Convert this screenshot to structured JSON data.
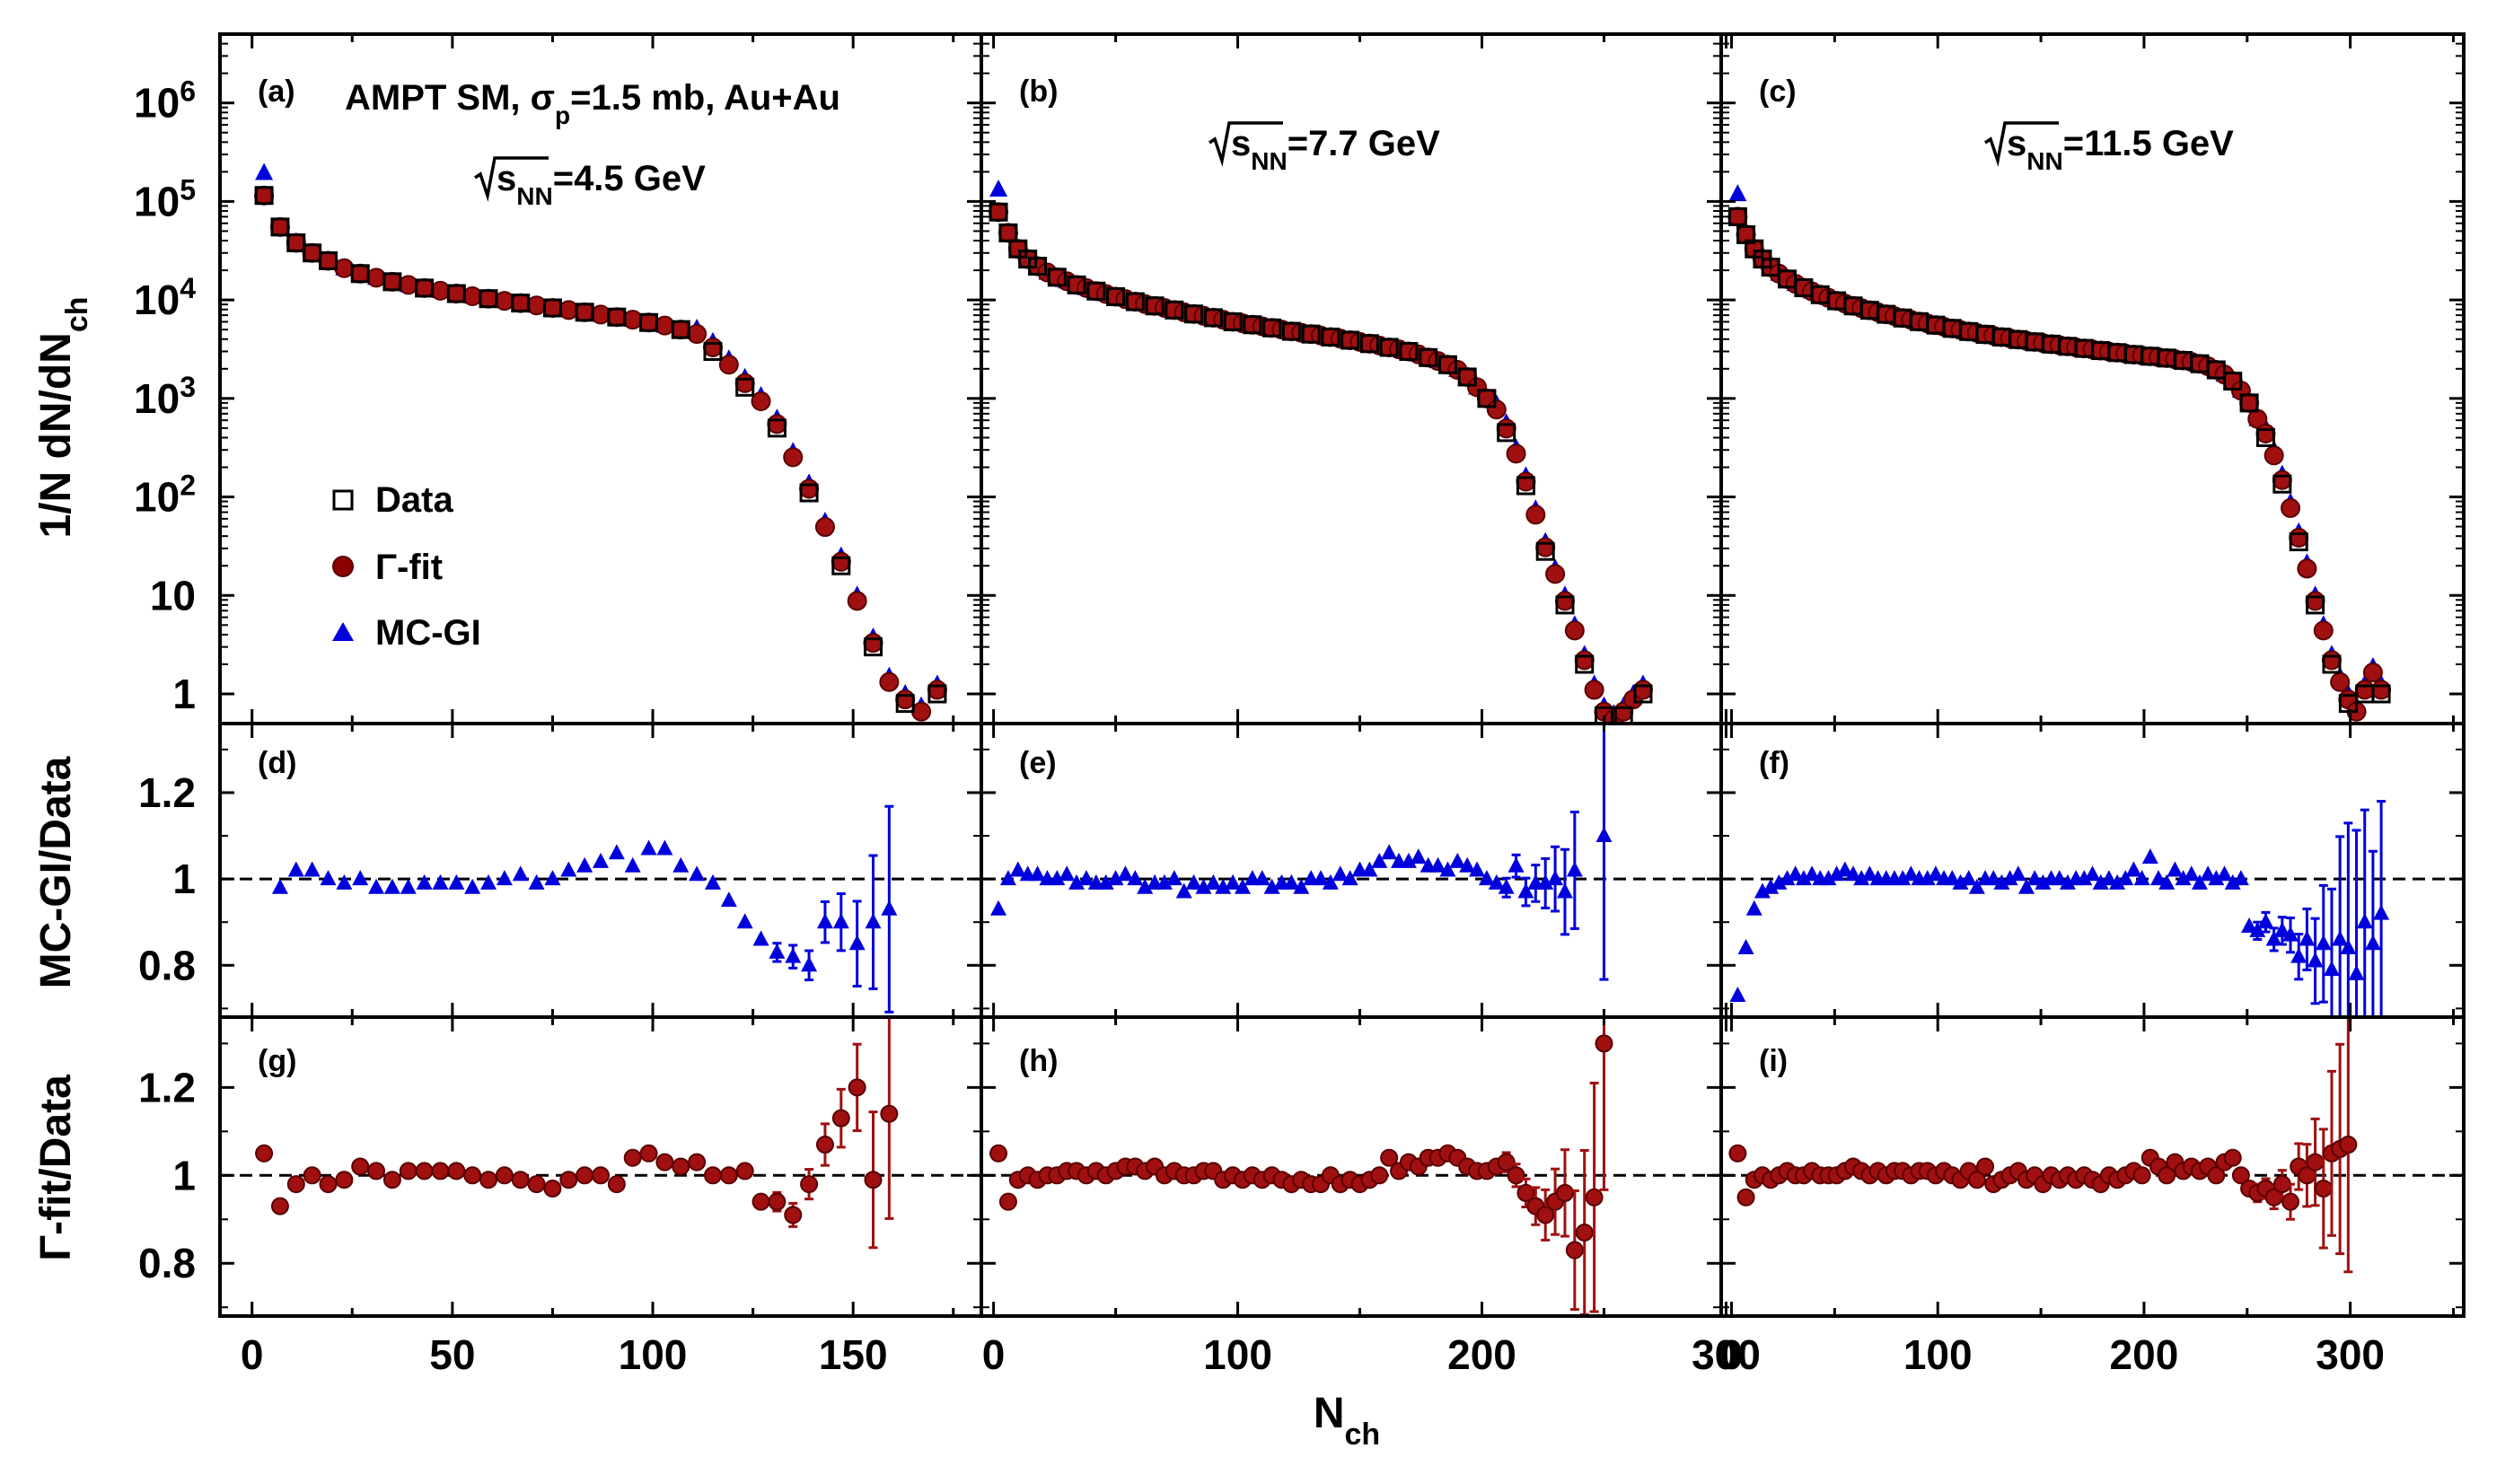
{
  "figure": {
    "header_text": "AMPT SM, σp=1.5 mb, Au+Au",
    "x_label": "Nch",
    "legend": {
      "data": "Data",
      "gamma": "Γ-fit",
      "mc": "MC-GI"
    },
    "colors": {
      "data": "#000000",
      "gamma": "#8b0000",
      "mc": "#0000dd"
    }
  },
  "chart_data": {
    "type": "scatter",
    "title": "AMPT SM, σp=1.5 mb, Au+Au",
    "xlabel": "Nch",
    "ylabels": [
      "1/N dN/dNch",
      "MC-GI/Data",
      "Γ-fit/Data"
    ],
    "yscale_top": "log",
    "ylim_top": [
      0.5,
      5000000
    ],
    "ylim_ratio": [
      0.68,
      1.36
    ],
    "yticks_top_labels": [
      "1",
      "10",
      "10²",
      "10³",
      "10⁴",
      "10⁵",
      "10⁶"
    ],
    "yticks_ratio": [
      "0.8",
      "1",
      "1.2"
    ],
    "columns": [
      {
        "energy_label": "√sNN=4.5 GeV",
        "panel_labels": [
          "(a)",
          "(d)",
          "(g)"
        ],
        "xlim": [
          -8,
          182
        ],
        "xticks": [
          0,
          50,
          100,
          150
        ],
        "xtick_labels": [
          "0",
          "50",
          "100",
          "150"
        ],
        "knee_n": 110,
        "plateau_at_knee": 5000,
        "fall_scale": 9.5,
        "data_x": [
          3,
          7,
          11,
          15,
          19,
          23,
          27,
          31,
          35,
          39,
          43,
          47,
          51,
          55,
          59,
          63,
          67,
          71,
          75,
          79,
          83,
          87,
          91,
          95,
          99,
          103,
          107,
          111,
          115,
          119,
          123,
          127,
          131,
          135,
          139,
          143,
          147,
          151,
          155,
          159,
          163,
          167,
          171
        ],
        "data_y": [
          115000,
          55000,
          38000,
          30000,
          25000,
          21000,
          18500,
          16800,
          15300,
          14200,
          13200,
          12400,
          11600,
          10900,
          10300,
          9800,
          9300,
          8800,
          8300,
          7900,
          7500,
          7100,
          6700,
          6300,
          5900,
          5500,
          5000,
          4100,
          3000,
          2000,
          1300,
          850,
          500,
          230,
          110,
          45,
          20,
          8,
          3,
          1.2,
          0.8,
          0.6,
          1
        ],
        "ratio_mc_x": [
          7,
          11,
          15,
          19,
          23,
          27,
          31,
          35,
          39,
          43,
          47,
          51,
          55,
          59,
          63,
          67,
          71,
          75,
          79,
          83,
          87,
          91,
          95,
          99,
          103,
          107,
          111,
          115,
          119,
          123,
          127,
          131,
          135,
          139,
          143,
          147,
          151,
          155,
          159
        ],
        "ratio_mc": [
          0.98,
          1.02,
          1.02,
          1.0,
          0.99,
          1.0,
          0.98,
          0.98,
          0.98,
          0.99,
          0.99,
          0.99,
          0.98,
          0.99,
          1.0,
          1.01,
          0.99,
          1.0,
          1.02,
          1.03,
          1.04,
          1.06,
          1.03,
          1.07,
          1.07,
          1.03,
          1.01,
          0.99,
          0.95,
          0.9,
          0.86,
          0.83,
          0.82,
          0.8,
          0.9,
          0.9,
          0.85,
          0.9,
          0.93
        ],
        "ratio_gamma_x": [
          3,
          7,
          11,
          15,
          19,
          23,
          27,
          31,
          35,
          39,
          43,
          47,
          51,
          55,
          59,
          63,
          67,
          71,
          75,
          79,
          83,
          87,
          91,
          95,
          99,
          103,
          107,
          111,
          115,
          119,
          123,
          127,
          131,
          135,
          139,
          143,
          147,
          151,
          155,
          159
        ],
        "ratio_gamma": [
          1.05,
          0.93,
          0.98,
          1.0,
          0.98,
          0.99,
          1.02,
          1.01,
          0.99,
          1.01,
          1.01,
          1.01,
          1.01,
          1.0,
          0.99,
          1.0,
          0.99,
          0.98,
          0.97,
          0.99,
          1.0,
          1.0,
          0.98,
          1.04,
          1.05,
          1.03,
          1.02,
          1.03,
          1.0,
          1.0,
          1.01,
          0.94,
          0.94,
          0.91,
          0.98,
          1.07,
          1.13,
          1.2,
          0.99,
          1.14
        ]
      },
      {
        "energy_label": "√sNN=7.7 GeV",
        "panel_labels": [
          "(b)",
          "(e)",
          "(h)"
        ],
        "xlim": [
          -5,
          298
        ],
        "xticks": [
          0,
          100,
          200,
          300
        ],
        "xtick_labels": [
          "0",
          "100",
          "200",
          "300"
        ],
        "knee_n": 205,
        "plateau_at_knee": 2500,
        "fall_scale": 12,
        "data_x": [
          2,
          6,
          10,
          14,
          18,
          22,
          26,
          30,
          34,
          38,
          42,
          46,
          50,
          54,
          58,
          62,
          66,
          70,
          74,
          78,
          82,
          86,
          90,
          94,
          98,
          102,
          106,
          110,
          114,
          118,
          122,
          126,
          130,
          134,
          138,
          142,
          146,
          150,
          154,
          158,
          162,
          166,
          170,
          174,
          178,
          182,
          186,
          190,
          194,
          198,
          202,
          206,
          210,
          214,
          218,
          222,
          226,
          230,
          234,
          238,
          242,
          246,
          250,
          254,
          258,
          262,
          266
        ],
        "data_y": [
          78000,
          48000,
          33000,
          26000,
          22000,
          19000,
          17000,
          15500,
          14200,
          13200,
          12300,
          11500,
          10800,
          10200,
          9600,
          9100,
          8700,
          8300,
          7900,
          7500,
          7200,
          6900,
          6600,
          6300,
          6000,
          5800,
          5600,
          5400,
          5200,
          5000,
          4800,
          4650,
          4500,
          4350,
          4200,
          4050,
          3900,
          3750,
          3600,
          3450,
          3300,
          3150,
          3000,
          2800,
          2600,
          2400,
          2200,
          1950,
          1650,
          1300,
          1000,
          700,
          450,
          250,
          130,
          60,
          28,
          15,
          8,
          4,
          2,
          1,
          0.6,
          0.5,
          0.6,
          0.8,
          1
        ],
        "ratio_mc_x": [
          2,
          6,
          10,
          14,
          18,
          22,
          26,
          30,
          34,
          38,
          42,
          46,
          50,
          54,
          58,
          62,
          66,
          70,
          74,
          78,
          82,
          86,
          90,
          94,
          98,
          102,
          106,
          110,
          114,
          118,
          122,
          126,
          130,
          134,
          138,
          142,
          146,
          150,
          154,
          158,
          162,
          166,
          170,
          174,
          178,
          182,
          186,
          190,
          194,
          198,
          202,
          206,
          210,
          214,
          218,
          222,
          226,
          230,
          234,
          238,
          250
        ],
        "ratio_mc": [
          0.93,
          1.0,
          1.02,
          1.01,
          1.01,
          1.0,
          1.0,
          1.01,
          0.99,
          1.0,
          0.99,
          0.99,
          1.0,
          1.01,
          1.0,
          0.98,
          0.99,
          0.99,
          1.0,
          0.97,
          0.99,
          0.98,
          0.99,
          0.98,
          0.99,
          0.98,
          1.0,
          1.0,
          0.98,
          0.99,
          0.99,
          0.98,
          1.0,
          1.0,
          0.99,
          1.01,
          1.0,
          1.02,
          1.02,
          1.04,
          1.06,
          1.04,
          1.04,
          1.05,
          1.03,
          1.03,
          1.02,
          1.04,
          1.03,
          1.02,
          1.0,
          0.99,
          0.98,
          1.03,
          0.97,
          0.99,
          0.99,
          1.0,
          0.97,
          1.02,
          1.1
        ],
        "ratio_gamma_x": [
          2,
          6,
          10,
          14,
          18,
          22,
          26,
          30,
          34,
          38,
          42,
          46,
          50,
          54,
          58,
          62,
          66,
          70,
          74,
          78,
          82,
          86,
          90,
          94,
          98,
          102,
          106,
          110,
          114,
          118,
          122,
          126,
          130,
          134,
          138,
          142,
          146,
          150,
          154,
          158,
          162,
          166,
          170,
          174,
          178,
          182,
          186,
          190,
          194,
          198,
          202,
          206,
          210,
          214,
          218,
          222,
          226,
          230,
          234,
          238,
          242,
          246,
          250
        ],
        "ratio_gamma": [
          1.05,
          0.94,
          0.99,
          1.0,
          0.99,
          1.0,
          1.0,
          1.01,
          1.01,
          1.0,
          1.01,
          1.0,
          1.01,
          1.02,
          1.02,
          1.01,
          1.02,
          1.0,
          1.01,
          1.0,
          1.0,
          1.01,
          1.01,
          0.99,
          1.0,
          0.99,
          1.0,
          0.99,
          1.0,
          0.99,
          0.98,
          0.99,
          0.98,
          0.98,
          1.0,
          0.98,
          0.99,
          0.98,
          0.99,
          1.0,
          1.04,
          1.01,
          1.03,
          1.02,
          1.04,
          1.04,
          1.05,
          1.04,
          1.02,
          1.01,
          1.01,
          1.02,
          1.03,
          1.0,
          0.96,
          0.93,
          0.91,
          0.94,
          0.96,
          0.83,
          0.87,
          0.95,
          1.3
        ]
      },
      {
        "energy_label": "√sNN=11.5 GeV",
        "panel_labels": [
          "(c)",
          "(f)",
          "(i)"
        ],
        "xlim": [
          -5,
          355
        ],
        "xticks": [
          0,
          100,
          200,
          300
        ],
        "xtick_labels": [
          "0",
          "100",
          "200",
          "300"
        ],
        "knee_n": 255,
        "plateau_at_knee": 2200,
        "fall_scale": 12,
        "data_x": [
          3,
          7,
          11,
          15,
          19,
          23,
          27,
          31,
          35,
          39,
          43,
          47,
          51,
          55,
          59,
          63,
          67,
          71,
          75,
          79,
          83,
          87,
          91,
          95,
          99,
          103,
          107,
          111,
          115,
          119,
          123,
          127,
          131,
          135,
          139,
          143,
          147,
          151,
          155,
          159,
          163,
          167,
          171,
          175,
          179,
          183,
          187,
          191,
          195,
          199,
          203,
          207,
          211,
          215,
          219,
          223,
          227,
          231,
          235,
          239,
          243,
          247,
          251,
          255,
          259,
          263,
          267,
          271,
          275,
          279,
          283,
          287,
          291,
          295,
          299,
          303,
          307,
          311,
          315
        ],
        "data_y": [
          70000,
          46000,
          33000,
          26000,
          21500,
          18500,
          16300,
          14600,
          13300,
          12200,
          11300,
          10500,
          9800,
          9200,
          8700,
          8250,
          7850,
          7500,
          7150,
          6850,
          6550,
          6280,
          6020,
          5780,
          5550,
          5340,
          5140,
          4950,
          4780,
          4620,
          4470,
          4330,
          4200,
          4080,
          3960,
          3850,
          3750,
          3650,
          3560,
          3470,
          3380,
          3300,
          3220,
          3140,
          3060,
          2990,
          2920,
          2850,
          2790,
          2730,
          2680,
          2620,
          2570,
          2500,
          2430,
          2350,
          2250,
          2120,
          1950,
          1750,
          1500,
          1200,
          900,
          620,
          400,
          240,
          135,
          70,
          35,
          17,
          8,
          4,
          2,
          1.2,
          0.8,
          0.6,
          1,
          1.5,
          1
        ],
        "ratio_mc_x": [
          3,
          7,
          11,
          15,
          19,
          23,
          27,
          31,
          35,
          39,
          43,
          47,
          51,
          55,
          59,
          63,
          67,
          71,
          75,
          79,
          83,
          87,
          91,
          95,
          99,
          103,
          107,
          111,
          115,
          119,
          123,
          127,
          131,
          135,
          139,
          143,
          147,
          151,
          155,
          159,
          163,
          167,
          171,
          175,
          179,
          183,
          187,
          191,
          195,
          199,
          203,
          207,
          211,
          215,
          219,
          223,
          227,
          231,
          235,
          239,
          243,
          247,
          251,
          255,
          259,
          263,
          267,
          271,
          275,
          279,
          283,
          287,
          291,
          295,
          299,
          303,
          307,
          311,
          315
        ],
        "ratio_mc": [
          0.73,
          0.84,
          0.93,
          0.97,
          0.98,
          0.99,
          1.0,
          1.01,
          1.0,
          1.01,
          1.0,
          1.0,
          1.01,
          1.02,
          1.01,
          1.0,
          1.01,
          1.0,
          1.0,
          1.0,
          1.0,
          1.01,
          1.0,
          1.0,
          1.01,
          1.0,
          1.0,
          0.99,
          1.0,
          0.98,
          1.0,
          1.0,
          0.99,
          1.0,
          1.01,
          0.98,
          1.0,
          0.99,
          1.0,
          1.0,
          0.99,
          1.0,
          1.0,
          1.01,
          0.99,
          1.0,
          0.99,
          1.0,
          1.02,
          1.0,
          1.05,
          1.0,
          0.99,
          1.02,
          1.0,
          1.01,
          0.99,
          1.01,
          1.0,
          1.01,
          0.99,
          1.0,
          0.89,
          0.88,
          0.9,
          0.86,
          0.88,
          0.87,
          0.82,
          0.86,
          0.81,
          0.85,
          0.79,
          0.86,
          0.84,
          0.78,
          0.9,
          0.85,
          0.92
        ],
        "ratio_gamma_x": [
          3,
          7,
          11,
          15,
          19,
          23,
          27,
          31,
          35,
          39,
          43,
          47,
          51,
          55,
          59,
          63,
          67,
          71,
          75,
          79,
          83,
          87,
          91,
          95,
          99,
          103,
          107,
          111,
          115,
          119,
          123,
          127,
          131,
          135,
          139,
          143,
          147,
          151,
          155,
          159,
          163,
          167,
          171,
          175,
          179,
          183,
          187,
          191,
          195,
          199,
          203,
          207,
          211,
          215,
          219,
          223,
          227,
          231,
          235,
          239,
          243,
          247,
          251,
          255,
          259,
          263,
          267,
          271,
          275,
          279,
          283,
          287,
          291,
          295,
          299
        ],
        "ratio_gamma": [
          1.05,
          0.95,
          0.99,
          1.0,
          0.99,
          1.0,
          1.01,
          1.0,
          1.0,
          1.01,
          1.0,
          1.0,
          1.0,
          1.01,
          1.02,
          1.01,
          1.0,
          1.01,
          1.0,
          1.01,
          1.01,
          1.0,
          1.01,
          1.01,
          1.0,
          1.01,
          1.0,
          0.99,
          1.01,
          0.99,
          1.02,
          0.98,
          0.99,
          1.0,
          1.01,
          0.99,
          1.0,
          0.98,
          1.0,
          0.99,
          1.0,
          0.99,
          1.0,
          0.99,
          0.98,
          1.0,
          0.99,
          1.0,
          1.01,
          1.0,
          1.04,
          1.02,
          1.0,
          1.03,
          1.01,
          1.02,
          1.01,
          1.02,
          1.0,
          1.03,
          1.04,
          1.0,
          0.97,
          0.96,
          0.97,
          0.95,
          0.98,
          0.94,
          1.02,
          1.0,
          1.03,
          0.97,
          1.05,
          1.06,
          1.07
        ]
      }
    ]
  }
}
